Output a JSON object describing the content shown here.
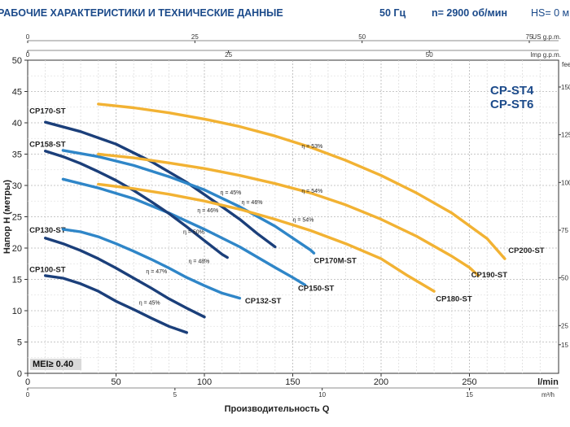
{
  "header": {
    "title": "РАБОЧИЕ ХАРАКТЕРИСТИКИ И ТЕХНИЧЕСКИЕ ДАННЫЕ",
    "frequency": "50 Гц",
    "speed": "n= 2900 об/мин",
    "hs": "HS= 0 м"
  },
  "brand": {
    "line1": "CP-ST4",
    "line2": "CP-ST6"
  },
  "mei": "MEI≥ 0.40",
  "colors": {
    "dark_blue": "#1b3f7a",
    "mid_blue": "#2f86c8",
    "orange": "#f2b233",
    "header": "#1b4a8a"
  },
  "chart_data": {
    "type": "line",
    "xlabel": "Производительность Q",
    "ylabel": "Напор H (метры)",
    "x_unit": "l/min",
    "y_unit_right": "feet",
    "xlim": [
      0,
      300
    ],
    "ylim": [
      0,
      50
    ],
    "x_ticks": [
      0,
      50,
      100,
      150,
      200,
      250
    ],
    "y_ticks": [
      0,
      5,
      10,
      15,
      20,
      25,
      30,
      35,
      40,
      45,
      50
    ],
    "secondary_axes": {
      "us_gpm": {
        "label": "US g.p.m.",
        "ticks": [
          0,
          25,
          50,
          75
        ]
      },
      "imp_gpm": {
        "label": "Imp g.p.m.",
        "ticks": [
          0,
          25,
          50
        ]
      },
      "m3h": {
        "label": "m³/h",
        "ticks": [
          0,
          5,
          10,
          15
        ]
      },
      "feet": {
        "label": "feet",
        "ticks": [
          15,
          25,
          50,
          75,
          100,
          125,
          150
        ]
      }
    },
    "grid": true,
    "series": [
      {
        "name": "CP100-ST",
        "color": "#1b3f7a",
        "label_at": [
          1,
          16.2
        ],
        "points": [
          [
            10,
            15.6
          ],
          [
            20,
            15.2
          ],
          [
            30,
            14.3
          ],
          [
            40,
            13.1
          ],
          [
            50,
            11.5
          ],
          [
            60,
            10.2
          ],
          [
            70,
            8.8
          ],
          [
            80,
            7.5
          ],
          [
            90,
            6.5
          ]
        ]
      },
      {
        "name": "CP130-ST",
        "color": "#1b3f7a",
        "label_at": [
          1,
          22.5
        ],
        "points": [
          [
            10,
            21.6
          ],
          [
            20,
            20.7
          ],
          [
            30,
            19.6
          ],
          [
            40,
            18.3
          ],
          [
            50,
            16.8
          ],
          [
            60,
            15.2
          ],
          [
            70,
            13.6
          ],
          [
            80,
            11.9
          ],
          [
            90,
            10.4
          ],
          [
            100,
            9.0
          ]
        ]
      },
      {
        "name": "CP132-ST",
        "color": "#2f86c8",
        "label_at": [
          123,
          11.2
        ],
        "points": [
          [
            20,
            23.0
          ],
          [
            30,
            22.6
          ],
          [
            40,
            21.8
          ],
          [
            50,
            20.7
          ],
          [
            60,
            19.5
          ],
          [
            70,
            18.2
          ],
          [
            80,
            16.8
          ],
          [
            90,
            15.3
          ],
          [
            100,
            14.0
          ],
          [
            110,
            12.8
          ],
          [
            120,
            12.0
          ]
        ]
      },
      {
        "name": "CP150-ST",
        "color": "#2f86c8",
        "label_at": [
          153,
          13.2
        ],
        "points": [
          [
            20,
            31.0
          ],
          [
            40,
            29.6
          ],
          [
            60,
            27.9
          ],
          [
            80,
            25.6
          ],
          [
            100,
            23.0
          ],
          [
            120,
            20.2
          ],
          [
            140,
            16.9
          ],
          [
            150,
            15.3
          ],
          [
            157,
            14.1
          ]
        ]
      },
      {
        "name": "CP158-ST",
        "color": "#1b3f7a",
        "label_at": [
          1,
          36.2
        ],
        "points": [
          [
            10,
            35.5
          ],
          [
            20,
            34.6
          ],
          [
            30,
            33.5
          ],
          [
            40,
            32.2
          ],
          [
            50,
            30.8
          ],
          [
            60,
            29.2
          ],
          [
            70,
            27.4
          ],
          [
            80,
            25.5
          ],
          [
            90,
            23.4
          ],
          [
            100,
            21.2
          ],
          [
            110,
            19.0
          ],
          [
            113,
            18.5
          ]
        ]
      },
      {
        "name": "CP170-ST",
        "color": "#1b3f7a",
        "label_at": [
          1,
          41.5
        ],
        "points": [
          [
            10,
            40.1
          ],
          [
            30,
            38.6
          ],
          [
            50,
            36.6
          ],
          [
            70,
            33.8
          ],
          [
            90,
            30.5
          ],
          [
            110,
            26.6
          ],
          [
            120,
            24.6
          ],
          [
            130,
            22.3
          ],
          [
            140,
            20.2
          ]
        ]
      },
      {
        "name": "CP170M-ST",
        "color": "#2f86c8",
        "label_at": [
          162,
          17.6
        ],
        "points": [
          [
            20,
            35.6
          ],
          [
            40,
            34.6
          ],
          [
            60,
            33.2
          ],
          [
            80,
            31.4
          ],
          [
            100,
            29.3
          ],
          [
            120,
            26.6
          ],
          [
            140,
            23.5
          ],
          [
            160,
            19.7
          ],
          [
            162,
            19.2
          ]
        ]
      },
      {
        "name": "CP180-ST",
        "color": "#f2b233",
        "label_at": [
          231,
          11.5
        ],
        "points": [
          [
            40,
            30.2
          ],
          [
            60,
            29.5
          ],
          [
            80,
            28.6
          ],
          [
            100,
            27.5
          ],
          [
            120,
            26.2
          ],
          [
            140,
            24.6
          ],
          [
            160,
            22.8
          ],
          [
            180,
            20.7
          ],
          [
            200,
            18.3
          ],
          [
            215,
            15.6
          ],
          [
            230,
            13.1
          ]
        ]
      },
      {
        "name": "CP190-ST",
        "color": "#f2b233",
        "label_at": [
          251,
          15.3
        ],
        "points": [
          [
            40,
            35.0
          ],
          [
            60,
            34.4
          ],
          [
            80,
            33.6
          ],
          [
            100,
            32.7
          ],
          [
            120,
            31.6
          ],
          [
            140,
            30.3
          ],
          [
            160,
            28.8
          ],
          [
            180,
            26.9
          ],
          [
            200,
            24.6
          ],
          [
            220,
            21.9
          ],
          [
            240,
            18.7
          ],
          [
            250,
            16.9
          ],
          [
            255,
            15.6
          ]
        ]
      },
      {
        "name": "CP200-ST",
        "color": "#f2b233",
        "label_at": [
          272,
          19.2
        ],
        "points": [
          [
            40,
            43.0
          ],
          [
            60,
            42.4
          ],
          [
            80,
            41.6
          ],
          [
            100,
            40.6
          ],
          [
            120,
            39.4
          ],
          [
            140,
            37.9
          ],
          [
            160,
            36.1
          ],
          [
            180,
            34.0
          ],
          [
            200,
            31.6
          ],
          [
            220,
            28.8
          ],
          [
            240,
            25.6
          ],
          [
            260,
            21.5
          ],
          [
            270,
            18.3
          ]
        ]
      }
    ],
    "annotations": [
      {
        "text": "η = 45%",
        "x": 63,
        "y": 11.0
      },
      {
        "text": "η = 47%",
        "x": 67,
        "y": 16.0
      },
      {
        "text": "η = 48%",
        "x": 91,
        "y": 17.6
      },
      {
        "text": "η = 50%",
        "x": 88,
        "y": 22.3
      },
      {
        "text": "η = 46%",
        "x": 96,
        "y": 25.7
      },
      {
        "text": "η = 45%",
        "x": 109,
        "y": 28.6
      },
      {
        "text": "η = 46%",
        "x": 121,
        "y": 27.0
      },
      {
        "text": "η = 54%",
        "x": 150,
        "y": 24.2
      },
      {
        "text": "η = 54%",
        "x": 155,
        "y": 28.8
      },
      {
        "text": "η = 53%",
        "x": 155,
        "y": 36.0
      }
    ]
  }
}
